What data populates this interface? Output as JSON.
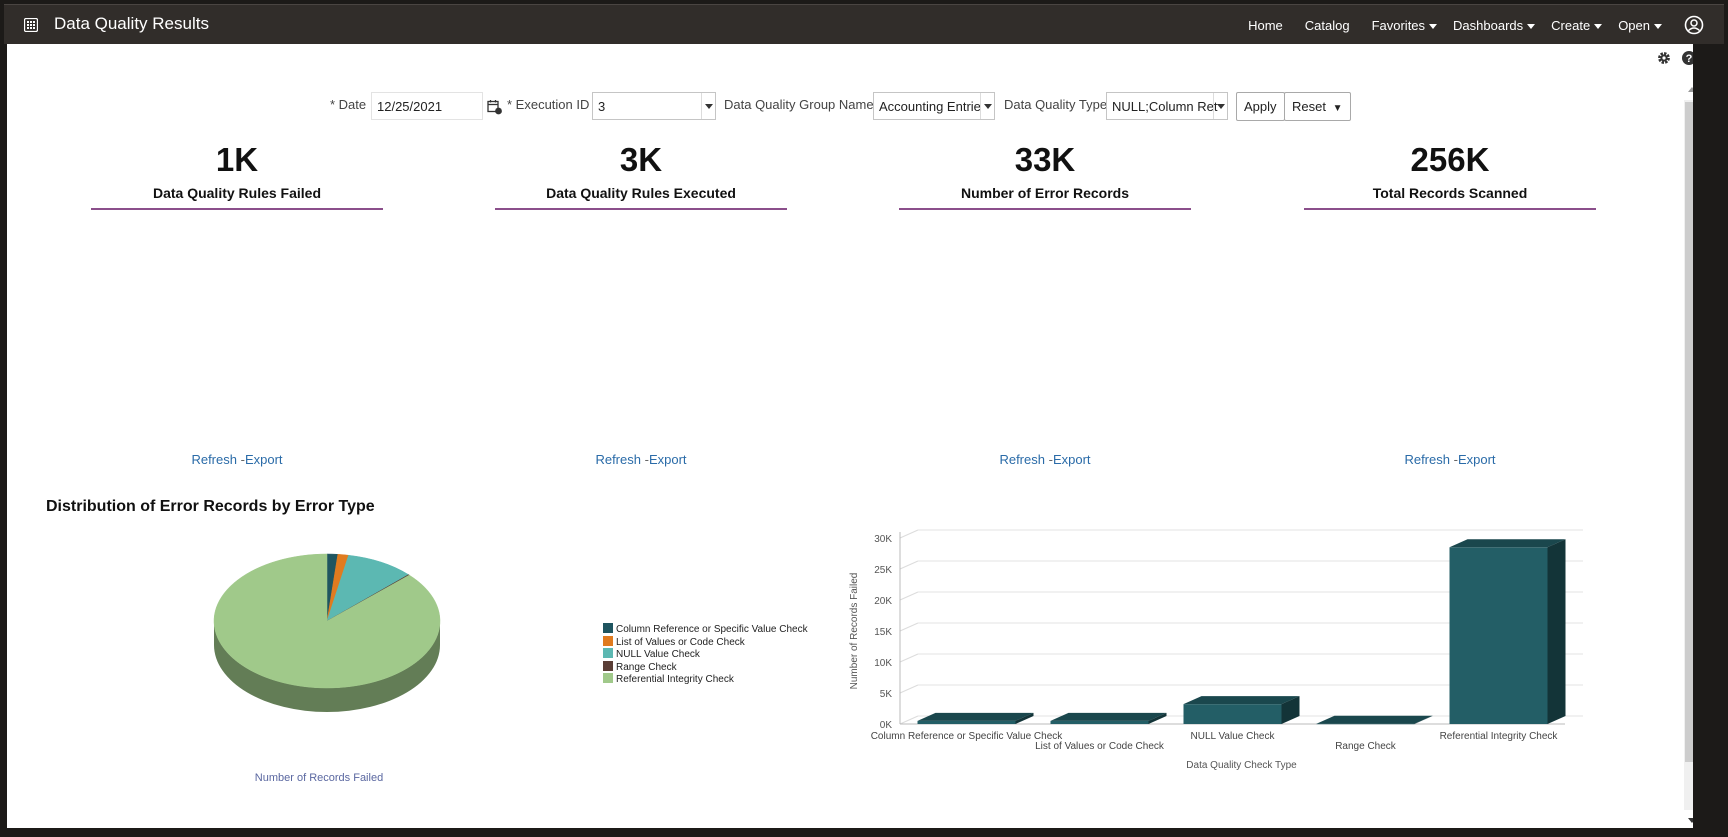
{
  "app": {
    "title": "Data Quality Results"
  },
  "nav": {
    "home": "Home",
    "catalog": "Catalog",
    "favorites": "Favorites",
    "dashboards": "Dashboards",
    "create": "Create",
    "open": "Open"
  },
  "prompts": {
    "date_label": "* Date",
    "date_value": "12/25/2021",
    "execution_label": "* Execution ID",
    "execution_value": "3",
    "group_label": "Data Quality Group Name",
    "group_value": "Accounting Entrie",
    "type_label": "Data Quality Type",
    "type_value": "NULL;Column Ret",
    "apply": "Apply",
    "reset": "Reset"
  },
  "kpis": [
    {
      "value": "1K",
      "label": "Data Quality Rules Failed"
    },
    {
      "value": "3K",
      "label": "Data Quality Rules Executed"
    },
    {
      "value": "33K",
      "label": "Number of Error Records"
    },
    {
      "value": "256K",
      "label": "Total Records Scanned"
    }
  ],
  "links": {
    "refresh": "Refresh",
    "sep": "-",
    "export": "Export"
  },
  "pie": {
    "title": "Distribution of Error Records by Error Type",
    "footer": "Number of Records Failed"
  },
  "colors": {
    "column_ref": "#1f5560",
    "list_values": "#e07b1f",
    "null_value": "#5cb8b2",
    "range": "#5a3e36",
    "ref_integrity": "#a0c98a",
    "bar": "#235e66",
    "accent": "#8b4f8b"
  },
  "legend": [
    {
      "label": "Column Reference or Specific Value Check",
      "color": "#1f5560"
    },
    {
      "label": "List of Values or Code Check",
      "color": "#e07b1f"
    },
    {
      "label": "NULL Value Check",
      "color": "#5cb8b2"
    },
    {
      "label": "Range Check",
      "color": "#5a3e36"
    },
    {
      "label": "Referential Integrity Check",
      "color": "#a0c98a"
    }
  ],
  "chart_data": [
    {
      "type": "pie",
      "title": "Distribution of Error Records by Error Type",
      "footer": "Number of Records Failed",
      "categories": [
        "Column Reference or Specific Value Check",
        "List of Values or Code Check",
        "NULL Value Check",
        "Range Check",
        "Referential Integrity Check"
      ],
      "values": [
        500,
        500,
        3200,
        50,
        28500
      ],
      "legend_position": "right"
    },
    {
      "type": "bar",
      "title": "",
      "xlabel": "Data Quality Check Type",
      "ylabel": "Number of Records Failed",
      "categories": [
        "Column Reference or Specific Value Check",
        "List of Values or Code Check",
        "NULL Value Check",
        "Range Check",
        "Referential Integrity Check"
      ],
      "values": [
        500,
        500,
        3200,
        50,
        28500
      ],
      "ylim": [
        0,
        30000
      ],
      "yticks": [
        "0K",
        "5K",
        "10K",
        "15K",
        "20K",
        "25K",
        "30K"
      ],
      "grid": true
    }
  ]
}
